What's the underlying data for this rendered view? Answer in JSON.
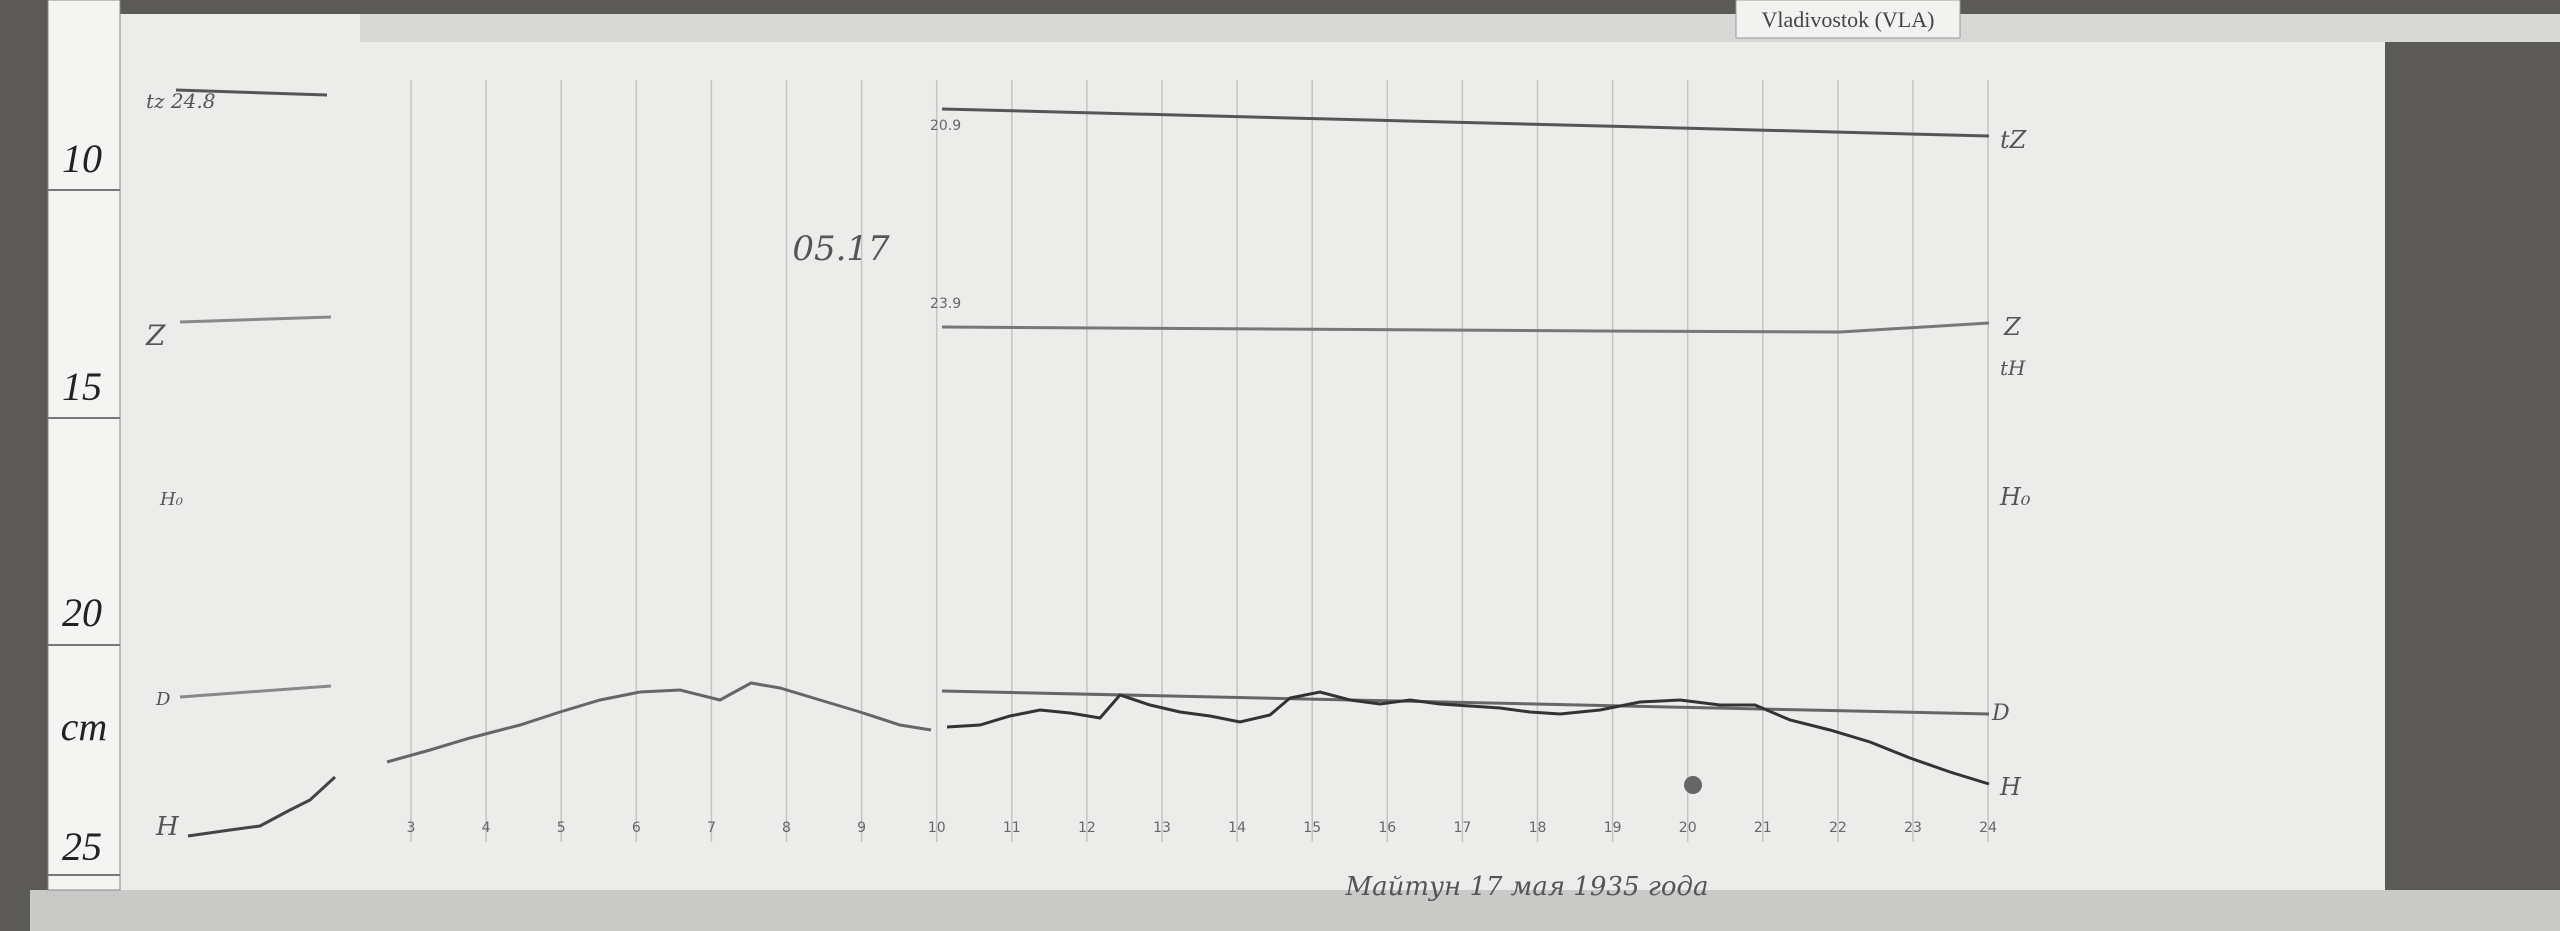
{
  "header": {
    "station": "Vladivostok (VLA)"
  },
  "ruler": {
    "labels": [
      "10",
      "15",
      "20",
      "25"
    ],
    "unit": "cm"
  },
  "date_note": "05.17",
  "caption": "Майтун 17 мая 1935 года",
  "baselines": {
    "tz": "20.9",
    "z": "23.9"
  },
  "left_labels": {
    "tz": "tz 24.8",
    "z": "Z",
    "h0": "H₀",
    "d": "D",
    "h": "H"
  },
  "right_labels": {
    "tz": "tZ",
    "z": "Z",
    "th": "tH",
    "h0": "H₀",
    "d": "D",
    "h": "H"
  },
  "hour_labels": [
    "3",
    "4",
    "5",
    "6",
    "7",
    "8",
    "9",
    "10",
    "11",
    "12",
    "13",
    "14",
    "15",
    "16",
    "17",
    "18",
    "19",
    "20",
    "21",
    "22",
    "23",
    "24"
  ]
}
